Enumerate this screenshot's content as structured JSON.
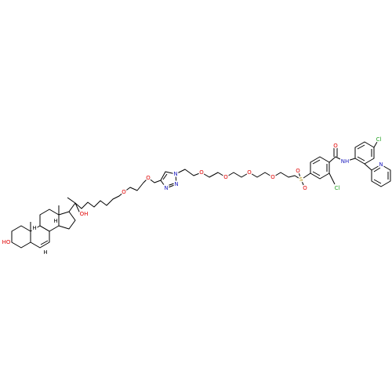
{
  "atoms": [
    {
      "label": "HO"
    },
    {
      "label": "H"
    },
    {
      "label": "H"
    },
    {
      "label": "H"
    },
    {
      "label": "OH"
    },
    {
      "label": "O"
    },
    {
      "label": "O"
    },
    {
      "label": "N"
    },
    {
      "label": "N"
    },
    {
      "label": "N"
    },
    {
      "label": "O"
    },
    {
      "label": "O"
    },
    {
      "label": "O"
    },
    {
      "label": "O"
    },
    {
      "label": "S"
    },
    {
      "label": "O"
    },
    {
      "label": "O"
    },
    {
      "label": "O"
    },
    {
      "label": "NH"
    },
    {
      "label": "Cl"
    },
    {
      "label": "Cl"
    },
    {
      "label": "N"
    }
  ]
}
